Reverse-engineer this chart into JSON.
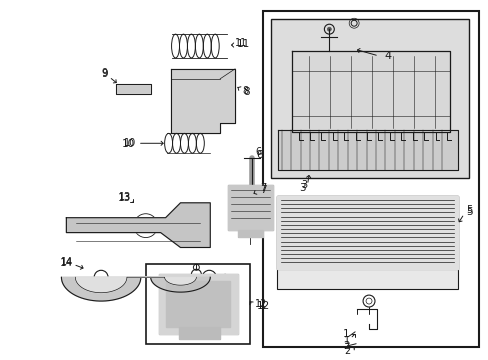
{
  "background_color": "#ffffff",
  "line_color": "#1a1a1a",
  "fig_width": 4.89,
  "fig_height": 3.6,
  "dpi": 100,
  "gray": "#aaaaaa",
  "dark_gray": "#555555",
  "light_gray": "#dddddd"
}
